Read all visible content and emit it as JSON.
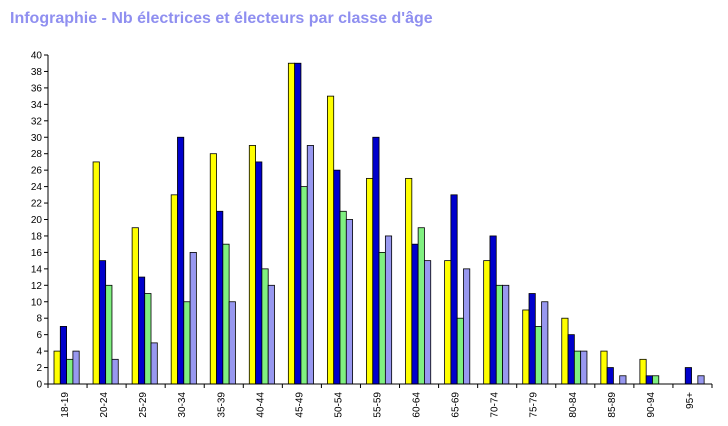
{
  "chart_data": {
    "type": "bar",
    "title": "Infographie - Nb électrices et électeurs par classe d'âge",
    "categories": [
      "18-19",
      "20-24",
      "25-29",
      "30-34",
      "35-39",
      "40-44",
      "45-49",
      "50-54",
      "55-59",
      "60-64",
      "65-69",
      "70-74",
      "75-79",
      "80-84",
      "85-89",
      "90-94",
      "95+"
    ],
    "series": [
      {
        "color": "#ffff00",
        "values": [
          4,
          27,
          19,
          23,
          28,
          29,
          39,
          35,
          25,
          25,
          15,
          15,
          9,
          8,
          4,
          3,
          0
        ]
      },
      {
        "color": "#0000cc",
        "values": [
          7,
          15,
          13,
          30,
          21,
          27,
          39,
          26,
          30,
          17,
          23,
          18,
          11,
          6,
          2,
          1,
          2
        ]
      },
      {
        "color": "#80f080",
        "values": [
          3,
          12,
          11,
          10,
          17,
          14,
          24,
          21,
          16,
          19,
          8,
          12,
          7,
          4,
          0,
          1,
          0
        ]
      },
      {
        "color": "#9898f0",
        "values": [
          4,
          3,
          5,
          16,
          10,
          12,
          29,
          20,
          18,
          15,
          14,
          12,
          10,
          4,
          1,
          0,
          1
        ]
      }
    ],
    "ylim": [
      0,
      40
    ],
    "ytick_step": 2,
    "grid": false,
    "legend": "none",
    "title_color": "#8f8ff0"
  }
}
